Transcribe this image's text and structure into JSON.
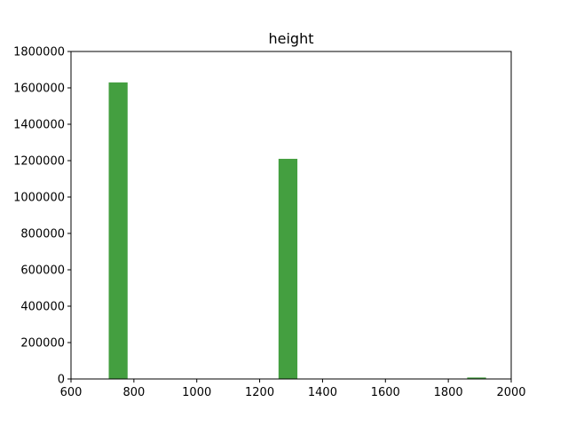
{
  "chart_data": {
    "type": "bar",
    "title": "height",
    "xlabel": "",
    "ylabel": "",
    "xlim": [
      600,
      2000
    ],
    "ylim": [
      0,
      1800000
    ],
    "x_ticks": [
      600,
      800,
      1000,
      1200,
      1400,
      1600,
      1800,
      2000
    ],
    "y_ticks": [
      0,
      200000,
      400000,
      600000,
      800000,
      1000000,
      1200000,
      1400000,
      1600000,
      1800000
    ],
    "grid": false,
    "bar_color": "#449f40",
    "bins": [
      {
        "x0": 720,
        "x1": 780,
        "value": 1630000
      },
      {
        "x0": 1260,
        "x1": 1320,
        "value": 1210000
      },
      {
        "x0": 1860,
        "x1": 1920,
        "value": 8000
      }
    ]
  }
}
